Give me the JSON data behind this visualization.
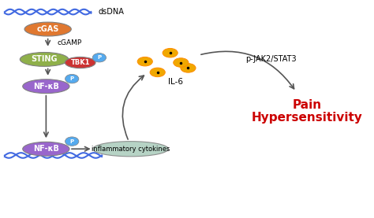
{
  "bg_color": "#ffffff",
  "dsdna_top_color": "#4169e1",
  "dsdna_bot_color": "#4169e1",
  "cgas_color": "#e07830",
  "cgas_text": "cGAS",
  "cgamp_text": "cGAMP",
  "sting_color": "#8fb04a",
  "sting_text": "STING",
  "tbk1_color": "#cc3333",
  "tbk1_text": "TBK1",
  "p_color": "#55aaee",
  "p_text": "P",
  "nfkb_color": "#9966cc",
  "nfkb_text": "NF-κB",
  "nfkb2_text": "NF-κB",
  "cytokines_color": "#aaccbb",
  "cytokines_text": "inflammatory cytokines",
  "il6_text": "IL-6",
  "il6_color": "#f0a800",
  "pjak_text": "p-JAK2/STAT3",
  "pain_text1": "Pain",
  "pain_text2": "Hypersensitivity",
  "pain_color": "#cc0000",
  "arrow_color": "#555555"
}
